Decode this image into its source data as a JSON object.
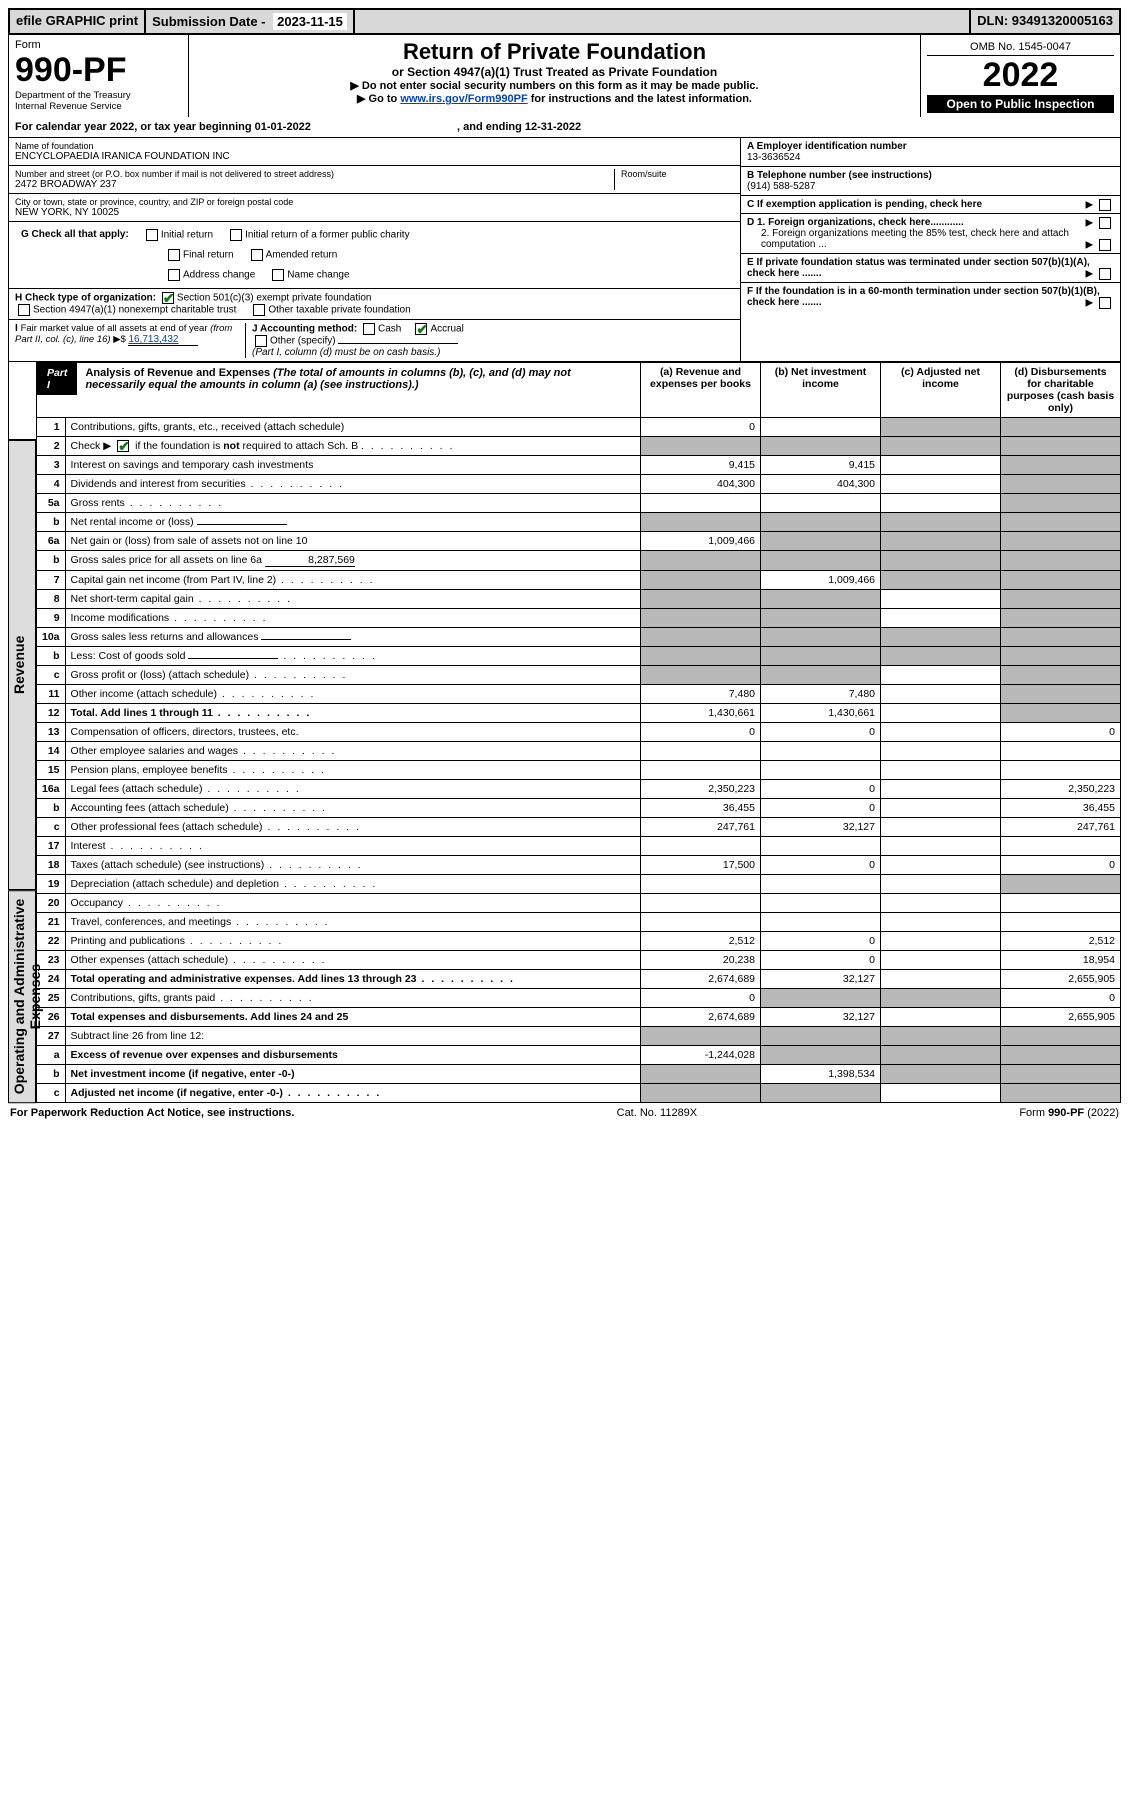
{
  "topbar": {
    "efile": "efile GRAPHIC print",
    "sub_label": "Submission Date - ",
    "sub_date": "2023-11-15",
    "dln": "DLN: 93491320005163"
  },
  "header": {
    "form_word": "Form",
    "form_no": "990-PF",
    "dept1": "Department of the Treasury",
    "dept2": "Internal Revenue Service",
    "title": "Return of Private Foundation",
    "subtitle": "or Section 4947(a)(1) Trust Treated as Private Foundation",
    "note1": "▶ Do not enter social security numbers on this form as it may be made public.",
    "note2_pre": "▶ Go to ",
    "note2_link": "www.irs.gov/Form990PF",
    "note2_post": " for instructions and the latest information.",
    "omb": "OMB No. 1545-0047",
    "year": "2022",
    "inspection": "Open to Public Inspection"
  },
  "cal": {
    "text": "For calendar year 2022, or tax year beginning 01-01-2022",
    "end": ", and ending 12-31-2022"
  },
  "foundation": {
    "name_label": "Name of foundation",
    "name": "ENCYCLOPAEDIA IRANICA FOUNDATION INC",
    "addr_label": "Number and street (or P.O. box number if mail is not delivered to street address)",
    "addr": "2472 BROADWAY 237",
    "room_label": "Room/suite",
    "city_label": "City or town, state or province, country, and ZIP or foreign postal code",
    "city": "NEW YORK, NY  10025",
    "ein_label": "A Employer identification number",
    "ein": "13-3636524",
    "tel_label": "B Telephone number (see instructions)",
    "tel": "(914) 588-5287",
    "c_label": "C If exemption application is pending, check here",
    "d1": "D 1. Foreign organizations, check here............",
    "d2": "2. Foreign organizations meeting the 85% test, check here and attach computation ...",
    "e_label": "E  If private foundation status was terminated under section 507(b)(1)(A), check here .......",
    "f_label": "F  If the foundation is in a 60-month termination under section 507(b)(1)(B), check here ......."
  },
  "g": {
    "label": "G Check all that apply:",
    "initial": "Initial return",
    "initial_former": "Initial return of a former public charity",
    "final": "Final return",
    "amended": "Amended return",
    "address": "Address change",
    "name_change": "Name change"
  },
  "h": {
    "label": "H Check type of organization:",
    "opt1": "Section 501(c)(3) exempt private foundation",
    "opt2": "Section 4947(a)(1) nonexempt charitable trust",
    "opt3": "Other taxable private foundation"
  },
  "i": {
    "label": "I Fair market value of all assets at end of year (from Part II, col. (c), line 16) ▶$",
    "value": "16,713,432"
  },
  "j": {
    "label": "J Accounting method:",
    "cash": "Cash",
    "accrual": "Accrual",
    "other": "Other (specify)",
    "note": "(Part I, column (d) must be on cash basis.)"
  },
  "part1": {
    "label": "Part I",
    "title": "Analysis of Revenue and Expenses",
    "title_note": " (The total of amounts in columns (b), (c), and (d) may not necessarily equal the amounts in column (a) (see instructions).)",
    "col_a": "(a)   Revenue and expenses per books",
    "col_b": "(b)   Net investment income",
    "col_c": "(c)   Adjusted net income",
    "col_d": "(d)   Disbursements for charitable purposes (cash basis only)"
  },
  "side": {
    "revenue": "Revenue",
    "expenses": "Operating and Administrative Expenses"
  },
  "rows": [
    {
      "n": "1",
      "desc": "Contributions, gifts, grants, etc., received (attach schedule)",
      "a": "0",
      "b": "",
      "c": "shade",
      "d": "shade"
    },
    {
      "n": "2",
      "desc": "Check ▶ ☑ if the foundation is not required to attach Sch. B",
      "a": "shade",
      "b": "shade",
      "c": "shade",
      "d": "shade",
      "dots": true
    },
    {
      "n": "3",
      "desc": "Interest on savings and temporary cash investments",
      "a": "9,415",
      "b": "9,415",
      "c": "",
      "d": "shade"
    },
    {
      "n": "4",
      "desc": "Dividends and interest from securities",
      "a": "404,300",
      "b": "404,300",
      "c": "",
      "d": "shade",
      "dots": true
    },
    {
      "n": "5a",
      "desc": "Gross rents",
      "a": "",
      "b": "",
      "c": "",
      "d": "shade",
      "dots": true
    },
    {
      "n": "b",
      "desc": "Net rental income or (loss)",
      "a": "shade",
      "b": "shade",
      "c": "shade",
      "d": "shade",
      "inline": ""
    },
    {
      "n": "6a",
      "desc": "Net gain or (loss) from sale of assets not on line 10",
      "a": "1,009,466",
      "b": "shade",
      "c": "shade",
      "d": "shade"
    },
    {
      "n": "b",
      "desc": "Gross sales price for all assets on line 6a",
      "a": "shade",
      "b": "shade",
      "c": "shade",
      "d": "shade",
      "inline": "8,287,569"
    },
    {
      "n": "7",
      "desc": "Capital gain net income (from Part IV, line 2)",
      "a": "shade",
      "b": "1,009,466",
      "c": "shade",
      "d": "shade",
      "dots": true
    },
    {
      "n": "8",
      "desc": "Net short-term capital gain",
      "a": "shade",
      "b": "shade",
      "c": "",
      "d": "shade",
      "dots": true
    },
    {
      "n": "9",
      "desc": "Income modifications",
      "a": "shade",
      "b": "shade",
      "c": "",
      "d": "shade",
      "dots": true
    },
    {
      "n": "10a",
      "desc": "Gross sales less returns and allowances",
      "a": "shade",
      "b": "shade",
      "c": "shade",
      "d": "shade",
      "inline": ""
    },
    {
      "n": "b",
      "desc": "Less: Cost of goods sold",
      "a": "shade",
      "b": "shade",
      "c": "shade",
      "d": "shade",
      "inline": "",
      "dots": true
    },
    {
      "n": "c",
      "desc": "Gross profit or (loss) (attach schedule)",
      "a": "shade",
      "b": "shade",
      "c": "",
      "d": "shade",
      "dots": true
    },
    {
      "n": "11",
      "desc": "Other income (attach schedule)",
      "a": "7,480",
      "b": "7,480",
      "c": "",
      "d": "shade",
      "dots": true
    },
    {
      "n": "12",
      "desc": "Total. Add lines 1 through 11",
      "a": "1,430,661",
      "b": "1,430,661",
      "c": "",
      "d": "shade",
      "dots": true,
      "bold": true
    }
  ],
  "exp_rows": [
    {
      "n": "13",
      "desc": "Compensation of officers, directors, trustees, etc.",
      "a": "0",
      "b": "0",
      "c": "",
      "d": "0"
    },
    {
      "n": "14",
      "desc": "Other employee salaries and wages",
      "a": "",
      "b": "",
      "c": "",
      "d": "",
      "dots": true
    },
    {
      "n": "15",
      "desc": "Pension plans, employee benefits",
      "a": "",
      "b": "",
      "c": "",
      "d": "",
      "dots": true
    },
    {
      "n": "16a",
      "desc": "Legal fees (attach schedule)",
      "a": "2,350,223",
      "b": "0",
      "c": "",
      "d": "2,350,223",
      "dots": true
    },
    {
      "n": "b",
      "desc": "Accounting fees (attach schedule)",
      "a": "36,455",
      "b": "0",
      "c": "",
      "d": "36,455",
      "dots": true
    },
    {
      "n": "c",
      "desc": "Other professional fees (attach schedule)",
      "a": "247,761",
      "b": "32,127",
      "c": "",
      "d": "247,761",
      "dots": true
    },
    {
      "n": "17",
      "desc": "Interest",
      "a": "",
      "b": "",
      "c": "",
      "d": "",
      "dots": true
    },
    {
      "n": "18",
      "desc": "Taxes (attach schedule) (see instructions)",
      "a": "17,500",
      "b": "0",
      "c": "",
      "d": "0",
      "dots": true
    },
    {
      "n": "19",
      "desc": "Depreciation (attach schedule) and depletion",
      "a": "",
      "b": "",
      "c": "",
      "d": "shade",
      "dots": true
    },
    {
      "n": "20",
      "desc": "Occupancy",
      "a": "",
      "b": "",
      "c": "",
      "d": "",
      "dots": true
    },
    {
      "n": "21",
      "desc": "Travel, conferences, and meetings",
      "a": "",
      "b": "",
      "c": "",
      "d": "",
      "dots": true
    },
    {
      "n": "22",
      "desc": "Printing and publications",
      "a": "2,512",
      "b": "0",
      "c": "",
      "d": "2,512",
      "dots": true
    },
    {
      "n": "23",
      "desc": "Other expenses (attach schedule)",
      "a": "20,238",
      "b": "0",
      "c": "",
      "d": "18,954",
      "dots": true
    },
    {
      "n": "24",
      "desc": "Total operating and administrative expenses. Add lines 13 through 23",
      "a": "2,674,689",
      "b": "32,127",
      "c": "",
      "d": "2,655,905",
      "dots": true,
      "bold": true
    },
    {
      "n": "25",
      "desc": "Contributions, gifts, grants paid",
      "a": "0",
      "b": "shade",
      "c": "shade",
      "d": "0",
      "dots": true
    },
    {
      "n": "26",
      "desc": "Total expenses and disbursements. Add lines 24 and 25",
      "a": "2,674,689",
      "b": "32,127",
      "c": "",
      "d": "2,655,905",
      "bold": true
    },
    {
      "n": "27",
      "desc": "Subtract line 26 from line 12:",
      "a": "shade",
      "b": "shade",
      "c": "shade",
      "d": "shade"
    },
    {
      "n": "a",
      "desc": "Excess of revenue over expenses and disbursements",
      "a": "-1,244,028",
      "b": "shade",
      "c": "shade",
      "d": "shade",
      "bold": true
    },
    {
      "n": "b",
      "desc": "Net investment income (if negative, enter -0-)",
      "a": "shade",
      "b": "1,398,534",
      "c": "shade",
      "d": "shade",
      "bold": true
    },
    {
      "n": "c",
      "desc": "Adjusted net income (if negative, enter -0-)",
      "a": "shade",
      "b": "shade",
      "c": "",
      "d": "shade",
      "bold": true,
      "dots": true
    }
  ],
  "footer": {
    "left": "For Paperwork Reduction Act Notice, see instructions.",
    "mid": "Cat. No. 11289X",
    "right": "Form 990-PF (2022)"
  }
}
